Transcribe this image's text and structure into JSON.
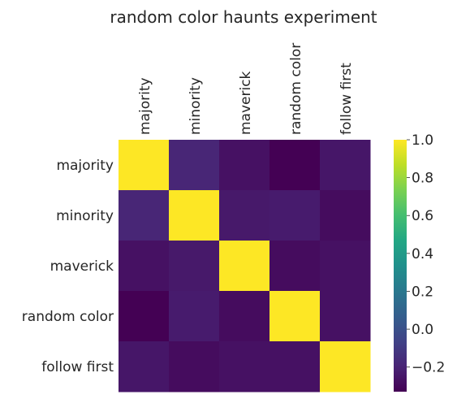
{
  "chart_data": {
    "type": "heatmap",
    "title": "random color haunts experiment",
    "x_labels": [
      "majority",
      "minority",
      "maverick",
      "random color",
      "follow first"
    ],
    "y_labels": [
      "majority",
      "minority",
      "maverick",
      "random color",
      "follow first"
    ],
    "values": [
      [
        1.0,
        -0.19,
        -0.27,
        -0.33,
        -0.25
      ],
      [
        -0.19,
        1.0,
        -0.24,
        -0.23,
        -0.29
      ],
      [
        -0.27,
        -0.24,
        1.0,
        -0.29,
        -0.27
      ],
      [
        -0.33,
        -0.23,
        -0.29,
        1.0,
        -0.27
      ],
      [
        -0.25,
        -0.29,
        -0.27,
        -0.27,
        1.0
      ]
    ],
    "colorbar": {
      "cmap": "viridis",
      "vmin": -0.33,
      "vmax": 1.0,
      "ticks": [
        1.0,
        0.8,
        0.6,
        0.4,
        0.2,
        0.0,
        -0.2
      ],
      "tick_labels": [
        "1.0",
        "0.8",
        "0.6",
        "0.4",
        "0.2",
        "0.0",
        "−0.2"
      ]
    },
    "grid": false
  }
}
